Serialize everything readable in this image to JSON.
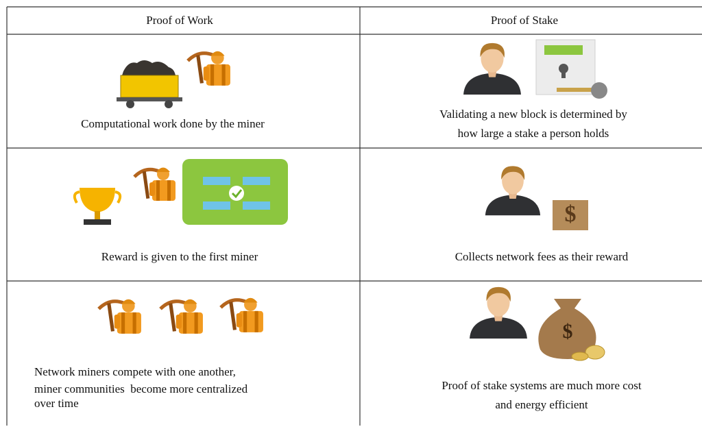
{
  "table": {
    "header": [
      "Proof of Work",
      "Proof of Stake"
    ],
    "rows": [
      {
        "cells": [
          {
            "lines": [
              "Computational work done by the miner"
            ]
          },
          {
            "lines": [
              "Validating a new block is determined by",
              "how large a stake a person holds"
            ]
          }
        ]
      },
      {
        "cells": [
          {
            "lines": [
              "Reward is given to the first miner"
            ]
          },
          {
            "lines": [
              "Collects network fees as their reward"
            ]
          }
        ]
      },
      {
        "cells": [
          {
            "lines": [
              "Network miners compete with one another,",
              "miner communities  become more centralized",
              "over time"
            ]
          },
          {
            "lines": [
              "Proof of stake systems are much more cost",
              "and energy efficient"
            ]
          }
        ]
      }
    ]
  }
}
